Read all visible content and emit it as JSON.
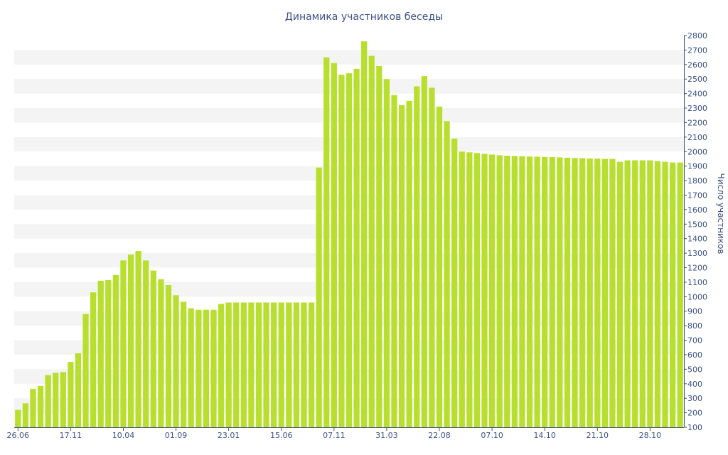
{
  "chart_data": {
    "type": "bar",
    "title": "Динамика участников беседы",
    "xlabel": "",
    "ylabel": "Число участников",
    "ylim": [
      100,
      2800
    ],
    "ytick_step": 100,
    "grid": "alternating-bands",
    "x_tick_labels": [
      {
        "label": "26.06",
        "index": 0
      },
      {
        "label": "17.11",
        "index": 7
      },
      {
        "label": "10.04",
        "index": 14
      },
      {
        "label": "01.09",
        "index": 21
      },
      {
        "label": "23.01",
        "index": 28
      },
      {
        "label": "15.06",
        "index": 35
      },
      {
        "label": "07.11",
        "index": 42
      },
      {
        "label": "31.03",
        "index": 49
      },
      {
        "label": "22.08",
        "index": 56
      },
      {
        "label": "07.10",
        "index": 63
      },
      {
        "label": "14.10",
        "index": 70
      },
      {
        "label": "21.10",
        "index": 77
      },
      {
        "label": "28.10",
        "index": 84
      }
    ],
    "series": [
      {
        "values": [
          220,
          265,
          365,
          385,
          460,
          475,
          480,
          550,
          610,
          880,
          1030,
          1110,
          1115,
          1150,
          1250,
          1290,
          1315,
          1250,
          1180,
          1120,
          1080,
          1010,
          965,
          920,
          910,
          910,
          910,
          950,
          960,
          960,
          960,
          960,
          960,
          960,
          960,
          960,
          960,
          960,
          960,
          960,
          1890,
          2650,
          2610,
          2530,
          2540,
          2570,
          2760,
          2660,
          2590,
          2500,
          2390,
          2320,
          2350,
          2450,
          2520,
          2440,
          2310,
          2210,
          2090,
          2000,
          1995,
          1990,
          1985,
          1980,
          1975,
          1972,
          1970,
          1968,
          1966,
          1965,
          1963,
          1962,
          1960,
          1958,
          1956,
          1955,
          1953,
          1952,
          1950,
          1950,
          1930,
          1940,
          1940,
          1940,
          1940,
          1935,
          1930,
          1925,
          1925
        ]
      }
    ]
  },
  "colors": {
    "bar": "#b8df2e",
    "text": "#3d5187",
    "band": "#f4f4f4",
    "axis": "#3d5187"
  }
}
